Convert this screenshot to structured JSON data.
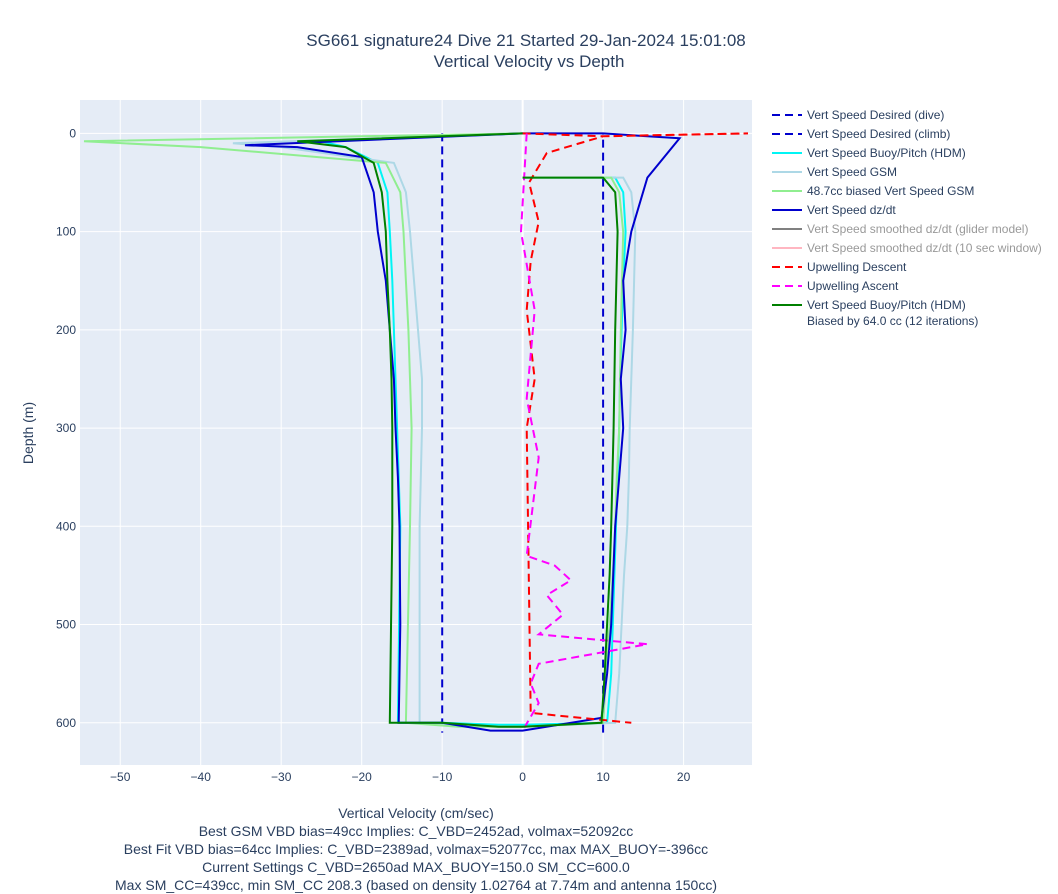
{
  "chart_data": {
    "type": "line",
    "title_line1": "SG661 signature24 Dive 21 Started 29-Jan-2024 15:01:08",
    "title_line2": "Vertical Velocity vs Depth",
    "xlabel": "Vertical Velocity (cm/sec)",
    "ylabel": "Depth (m)",
    "xlim": [
      -55,
      28.5
    ],
    "ylim": [
      -34,
      643
    ],
    "y_reversed": true,
    "x_ticks": [
      "−50",
      "−40",
      "−30",
      "−20",
      "−10",
      "0",
      "10",
      "20"
    ],
    "x_tick_values": [
      -50,
      -40,
      -30,
      -20,
      -10,
      0,
      10,
      20
    ],
    "y_ticks": [
      "0",
      "100",
      "200",
      "300",
      "400",
      "500",
      "600"
    ],
    "y_tick_values": [
      0,
      100,
      200,
      300,
      400,
      500,
      600
    ],
    "grid": true,
    "legend_position": "right",
    "captions": [
      "Best GSM VBD bias=49cc Implies: C_VBD=2452ad, volmax=52092cc",
      "Best Fit VBD bias=64cc Implies: C_VBD=2389ad, volmax=52077cc, max MAX_BUOY=-396cc",
      "Current Settings C_VBD=2650ad MAX_BUOY=150.0 SM_CC=600.0",
      "Max SM_CC=439cc, min SM_CC 208.3 (based on density 1.02764 at 7.74m and antenna 150cc)"
    ],
    "series": [
      {
        "name": "Vert Speed Desired (dive)",
        "color": "#0000cd",
        "dash": true,
        "dim": false,
        "x": [
          -10,
          -10
        ],
        "y": [
          0,
          610
        ]
      },
      {
        "name": "Vert Speed Desired (climb)",
        "color": "#0000cd",
        "dash": true,
        "dim": false,
        "x": [
          10,
          10
        ],
        "y": [
          610,
          0
        ]
      },
      {
        "name": "Vert Speed Buoy/Pitch (HDM)",
        "color": "#00f5f5",
        "dash": false,
        "dim": false,
        "x": [
          0,
          -25,
          -22,
          -18,
          -16.8,
          -16.5,
          -16.2,
          -16,
          -15.8,
          -15.6,
          -15.4,
          -15.2,
          -15.5,
          -10,
          -3,
          0,
          10.5,
          11,
          11.2,
          11.4,
          11.6,
          11.8,
          12,
          12.1,
          12.3,
          12.5,
          12.8,
          12.5,
          11.5,
          0
        ],
        "y": [
          0,
          8,
          14,
          30,
          60,
          100,
          150,
          200,
          250,
          300,
          350,
          400,
          600,
          600,
          602,
          602,
          600,
          550,
          500,
          450,
          400,
          350,
          300,
          250,
          200,
          150,
          100,
          60,
          45,
          45
        ]
      },
      {
        "name": "Vert Speed GSM",
        "color": "#add8e6",
        "dash": false,
        "dim": false,
        "x": [
          0,
          -36,
          -30,
          -16,
          -14.5,
          -14,
          -13.5,
          -13,
          -12.5,
          -12.5,
          -12.8,
          -12.8,
          -10,
          -2,
          0,
          11.5,
          12,
          12.3,
          12.6,
          13,
          13.2,
          13.3,
          13.5,
          13.7,
          14,
          13.5,
          12.5,
          0
        ],
        "y": [
          0,
          10,
          14,
          30,
          60,
          100,
          150,
          200,
          250,
          300,
          400,
          600,
          602,
          604,
          604,
          600,
          550,
          500,
          450,
          400,
          350,
          300,
          250,
          200,
          100,
          60,
          45,
          45
        ]
      },
      {
        "name": "48.7cc biased Vert Speed GSM",
        "color": "#90ee90",
        "dash": false,
        "dim": false,
        "x": [
          0,
          -54.5,
          -40,
          -17,
          -15.2,
          -14.8,
          -14.5,
          -14.2,
          -14,
          -13.8,
          -14,
          -14.5,
          -8,
          0,
          10,
          10.4,
          10.8,
          11.2,
          11.5,
          11.7,
          12,
          12.2,
          12.5,
          12,
          11,
          0
        ],
        "y": [
          0,
          8,
          14,
          30,
          60,
          100,
          150,
          200,
          250,
          300,
          400,
          600,
          604,
          604,
          600,
          550,
          500,
          450,
          400,
          350,
          300,
          200,
          100,
          60,
          45,
          45
        ]
      },
      {
        "name": "Vert Speed dz/dt",
        "color": "#0000cd",
        "dash": false,
        "dim": false,
        "x": [
          0,
          -34.5,
          -28,
          -20,
          -18.5,
          -18,
          -17,
          -16.5,
          -16,
          -15.8,
          -15.5,
          -15.3,
          -15.2,
          -15.4,
          -10,
          -4,
          0,
          9.8,
          10.5,
          11,
          11.5,
          12,
          12.5,
          12.2,
          12.8,
          12.5,
          13.5,
          15.5,
          19.5,
          10,
          0
        ],
        "y": [
          0,
          12,
          14,
          24,
          60,
          100,
          150,
          200,
          250,
          300,
          350,
          400,
          500,
          600,
          600,
          608,
          608,
          595,
          550,
          500,
          400,
          350,
          300,
          250,
          200,
          150,
          100,
          45,
          5,
          0,
          0
        ]
      },
      {
        "name": "Vert Speed smoothed dz/dt (glider model)",
        "color": "#808080",
        "dash": false,
        "dim": true,
        "x": [],
        "y": []
      },
      {
        "name": "Vert Speed smoothed dz/dt (10 sec window)",
        "color": "#ffb6c1",
        "dash": false,
        "dim": true,
        "x": [],
        "y": []
      },
      {
        "name": "Upwelling Descent",
        "color": "#ff0000",
        "dash": true,
        "dim": false,
        "x": [
          0,
          10,
          28,
          10,
          3,
          0.8,
          2,
          1,
          0.5,
          1.5,
          0.5,
          1,
          13.5
        ],
        "y": [
          0,
          3,
          0,
          3,
          20,
          50,
          90,
          130,
          180,
          250,
          300,
          590,
          600
        ]
      },
      {
        "name": "Upwelling Ascent",
        "color": "#ff00ff",
        "dash": true,
        "dim": false,
        "x": [
          0.5,
          -0.2,
          1.5,
          0.5,
          2,
          0.5,
          4,
          6,
          3,
          5,
          2,
          15.5,
          2,
          1,
          2,
          0
        ],
        "y": [
          0,
          100,
          180,
          270,
          330,
          430,
          440,
          455,
          470,
          490,
          510,
          520,
          540,
          560,
          580,
          608
        ]
      },
      {
        "name": "Vert Speed Buoy/Pitch (HDM)",
        "name2": "Biased by 64.0 cc (12 iterations)",
        "color": "#008000",
        "dash": false,
        "dim": false,
        "x": [
          0,
          -28,
          -22,
          -18.5,
          -17.5,
          -17,
          -16.8,
          -16.5,
          -16.3,
          -16.2,
          -16.2,
          -16.5,
          -10,
          -3,
          0,
          9.8,
          10.2,
          10.5,
          10.8,
          11,
          11.3,
          11.5,
          11.8,
          11.5,
          10,
          0
        ],
        "y": [
          0,
          8,
          14,
          30,
          60,
          100,
          150,
          200,
          250,
          300,
          400,
          600,
          600,
          604,
          604,
          600,
          550,
          500,
          450,
          400,
          300,
          200,
          100,
          60,
          45,
          45
        ]
      }
    ]
  }
}
